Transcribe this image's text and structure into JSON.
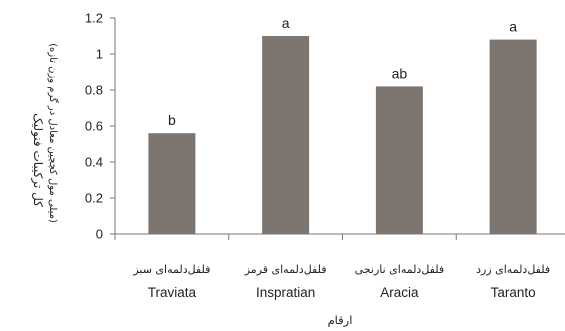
{
  "chart_data": {
    "type": "bar",
    "categories": [
      {
        "fa": "فلفل‌دلمه‌ای سبز",
        "en": "Traviata"
      },
      {
        "fa": "فلفل‌دلمه‌ای قرمز",
        "en": "Inspratian"
      },
      {
        "fa": "فلفل‌دلمه‌ای نارنجی",
        "en": "Aracia"
      },
      {
        "fa": "فلفل‌دلمه‌ای زرد",
        "en": "Taranto"
      }
    ],
    "values": [
      0.56,
      1.1,
      0.82,
      1.08
    ],
    "significance_letters": [
      "b",
      "a",
      "ab",
      "a"
    ],
    "ylabel_line1": "کل ترکیبات فنولیک",
    "ylabel_line2": "(میلی مول کچچین معادل در گرم وزن تازه)",
    "xlabel": "ارقام",
    "ylim": [
      0,
      1.2
    ],
    "yticks": [
      "0",
      "0.2",
      "0.4",
      "0.6",
      "0.8",
      "1",
      "1.2"
    ],
    "bar_color": "#7d7570",
    "grid": false,
    "legend": "none"
  }
}
